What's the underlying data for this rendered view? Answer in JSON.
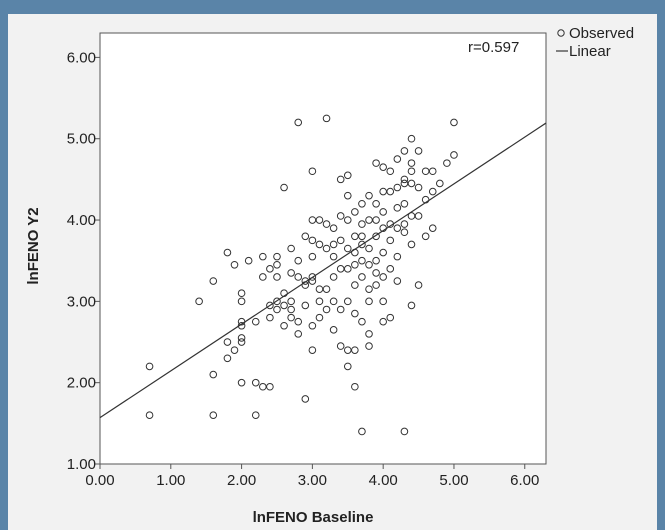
{
  "chart_data": {
    "type": "scatter",
    "title": "",
    "xlabel": "lnFENO Baseline",
    "ylabel": "lnFENO Y2",
    "xlim": [
      0,
      6.3
    ],
    "ylim": [
      1,
      6.3
    ],
    "xticks": [
      0,
      1,
      2,
      3,
      4,
      5,
      6
    ],
    "yticks": [
      1,
      2,
      3,
      4,
      5,
      6
    ],
    "xtick_labels": [
      "0.00",
      "1.00",
      "2.00",
      "3.00",
      "4.00",
      "5.00",
      "6.00"
    ],
    "ytick_labels": [
      "1.00",
      "2.00",
      "3.00",
      "4.00",
      "5.00",
      "6.00"
    ],
    "annotation": "r=0.597",
    "grid": false,
    "legend": {
      "placement": "outside-top-right",
      "entries": [
        {
          "label": "Observed",
          "marker": "circle"
        },
        {
          "label": "Linear",
          "marker": "line"
        }
      ]
    },
    "fit_line": {
      "intercept": 1.57,
      "slope": 0.575
    },
    "marker_color": "#333333",
    "line_color": "#333333",
    "points": [
      [
        0.7,
        2.2
      ],
      [
        0.7,
        1.6
      ],
      [
        1.4,
        3.0
      ],
      [
        1.6,
        3.25
      ],
      [
        1.6,
        2.1
      ],
      [
        1.6,
        1.6
      ],
      [
        1.8,
        3.6
      ],
      [
        1.8,
        2.5
      ],
      [
        1.8,
        2.3
      ],
      [
        1.9,
        2.4
      ],
      [
        1.9,
        3.45
      ],
      [
        2.0,
        3.1
      ],
      [
        2.0,
        3.0
      ],
      [
        2.0,
        2.75
      ],
      [
        2.0,
        2.7
      ],
      [
        2.0,
        2.55
      ],
      [
        2.0,
        2.5
      ],
      [
        2.0,
        2.0
      ],
      [
        2.1,
        3.5
      ],
      [
        2.2,
        2.0
      ],
      [
        2.2,
        1.6
      ],
      [
        2.3,
        1.95
      ],
      [
        2.3,
        3.55
      ],
      [
        2.3,
        3.3
      ],
      [
        2.4,
        3.4
      ],
      [
        2.4,
        2.95
      ],
      [
        2.4,
        2.8
      ],
      [
        2.4,
        1.95
      ],
      [
        2.5,
        3.45
      ],
      [
        2.5,
        3.0
      ],
      [
        2.5,
        3.3
      ],
      [
        2.5,
        2.9
      ],
      [
        2.6,
        4.4
      ],
      [
        2.6,
        2.95
      ],
      [
        2.6,
        2.7
      ],
      [
        2.6,
        3.1
      ],
      [
        2.7,
        3.65
      ],
      [
        2.7,
        3.35
      ],
      [
        2.7,
        3.0
      ],
      [
        2.7,
        2.9
      ],
      [
        2.7,
        2.8
      ],
      [
        2.8,
        5.2
      ],
      [
        2.8,
        3.5
      ],
      [
        2.8,
        3.3
      ],
      [
        2.8,
        2.75
      ],
      [
        2.8,
        2.6
      ],
      [
        2.9,
        3.8
      ],
      [
        2.9,
        3.25
      ],
      [
        2.9,
        3.2
      ],
      [
        2.9,
        2.95
      ],
      [
        2.9,
        1.8
      ],
      [
        3.0,
        4.6
      ],
      [
        3.0,
        4.0
      ],
      [
        3.0,
        3.75
      ],
      [
        3.0,
        3.3
      ],
      [
        3.0,
        3.25
      ],
      [
        3.0,
        2.7
      ],
      [
        3.0,
        2.4
      ],
      [
        3.1,
        3.7
      ],
      [
        3.1,
        3.15
      ],
      [
        3.1,
        3.0
      ],
      [
        3.1,
        2.8
      ],
      [
        3.2,
        5.25
      ],
      [
        3.2,
        3.95
      ],
      [
        3.2,
        3.65
      ],
      [
        3.2,
        3.15
      ],
      [
        3.2,
        2.9
      ],
      [
        3.3,
        3.7
      ],
      [
        3.3,
        3.3
      ],
      [
        3.3,
        3.0
      ],
      [
        3.3,
        2.65
      ],
      [
        3.4,
        4.5
      ],
      [
        3.4,
        4.05
      ],
      [
        3.4,
        3.75
      ],
      [
        3.4,
        3.4
      ],
      [
        3.4,
        2.9
      ],
      [
        3.4,
        2.45
      ],
      [
        3.5,
        4.55
      ],
      [
        3.5,
        4.3
      ],
      [
        3.5,
        4.0
      ],
      [
        3.5,
        3.4
      ],
      [
        3.5,
        3.0
      ],
      [
        3.5,
        2.4
      ],
      [
        3.5,
        2.2
      ],
      [
        3.6,
        3.8
      ],
      [
        3.6,
        3.45
      ],
      [
        3.6,
        3.2
      ],
      [
        3.6,
        2.85
      ],
      [
        3.6,
        2.4
      ],
      [
        3.6,
        1.95
      ],
      [
        3.7,
        4.2
      ],
      [
        3.7,
        3.95
      ],
      [
        3.7,
        3.7
      ],
      [
        3.7,
        3.3
      ],
      [
        3.7,
        2.75
      ],
      [
        3.7,
        1.4
      ],
      [
        3.8,
        4.3
      ],
      [
        3.8,
        4.0
      ],
      [
        3.8,
        3.65
      ],
      [
        3.8,
        3.45
      ],
      [
        3.8,
        3.0
      ],
      [
        3.8,
        2.6
      ],
      [
        3.8,
        2.45
      ],
      [
        3.9,
        4.7
      ],
      [
        3.9,
        4.2
      ],
      [
        3.9,
        3.8
      ],
      [
        3.9,
        3.5
      ],
      [
        3.9,
        3.2
      ],
      [
        4.0,
        4.65
      ],
      [
        4.0,
        4.35
      ],
      [
        4.0,
        4.1
      ],
      [
        4.0,
        3.9
      ],
      [
        4.0,
        3.6
      ],
      [
        4.0,
        3.3
      ],
      [
        4.0,
        2.75
      ],
      [
        4.1,
        4.6
      ],
      [
        4.1,
        4.35
      ],
      [
        4.1,
        3.75
      ],
      [
        4.1,
        3.4
      ],
      [
        4.1,
        2.8
      ],
      [
        4.2,
        4.75
      ],
      [
        4.2,
        4.4
      ],
      [
        4.2,
        4.15
      ],
      [
        4.2,
        3.9
      ],
      [
        4.2,
        3.55
      ],
      [
        4.3,
        4.85
      ],
      [
        4.3,
        4.5
      ],
      [
        4.3,
        4.2
      ],
      [
        4.3,
        3.95
      ],
      [
        4.3,
        3.85
      ],
      [
        4.3,
        1.4
      ],
      [
        4.4,
        5.0
      ],
      [
        4.4,
        4.7
      ],
      [
        4.4,
        4.45
      ],
      [
        4.4,
        4.05
      ],
      [
        4.4,
        3.7
      ],
      [
        4.5,
        4.4
      ],
      [
        4.5,
        4.05
      ],
      [
        4.5,
        3.2
      ],
      [
        4.6,
        4.6
      ],
      [
        4.6,
        4.25
      ],
      [
        4.6,
        3.8
      ],
      [
        4.7,
        4.6
      ],
      [
        4.7,
        4.35
      ],
      [
        4.7,
        3.9
      ],
      [
        4.8,
        4.45
      ],
      [
        4.9,
        4.7
      ],
      [
        5.0,
        5.2
      ],
      [
        5.0,
        4.8
      ],
      [
        3.0,
        3.55
      ],
      [
        3.3,
        3.55
      ],
      [
        3.9,
        4.0
      ],
      [
        4.1,
        3.95
      ],
      [
        4.3,
        4.45
      ],
      [
        4.4,
        4.6
      ],
      [
        4.5,
        4.85
      ],
      [
        3.6,
        3.6
      ],
      [
        3.7,
        3.5
      ],
      [
        3.8,
        3.15
      ],
      [
        4.0,
        3.0
      ],
      [
        3.5,
        3.65
      ],
      [
        3.3,
        3.9
      ],
      [
        3.6,
        4.1
      ],
      [
        3.1,
        4.0
      ],
      [
        2.5,
        3.55
      ],
      [
        2.2,
        2.75
      ],
      [
        4.2,
        3.25
      ],
      [
        4.4,
        2.95
      ],
      [
        3.7,
        3.8
      ],
      [
        3.9,
        3.35
      ]
    ]
  }
}
